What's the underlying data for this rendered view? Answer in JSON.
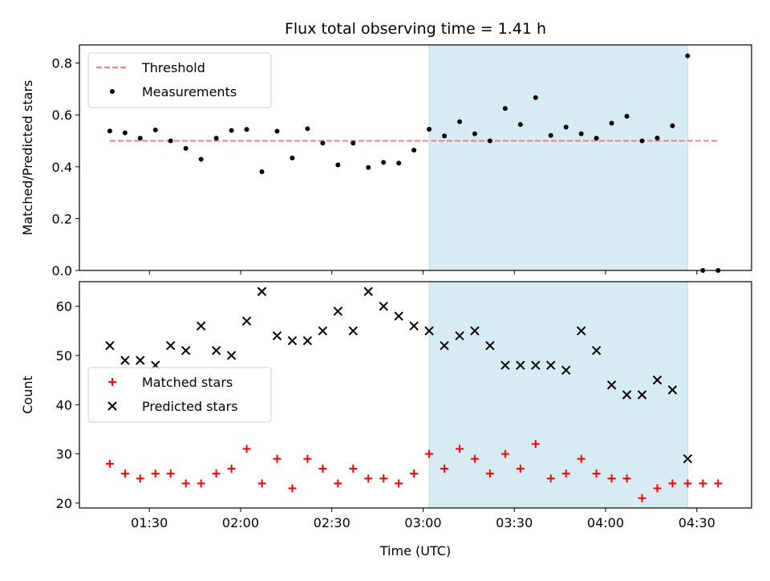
{
  "chart_data": [
    {
      "type": "scatter",
      "title": "Flux total observing time = 1.41 h",
      "xlabel": "",
      "ylabel": "Matched/Predicted stars",
      "xlim": [
        "01:07",
        "04:48"
      ],
      "ylim": [
        0,
        0.87
      ],
      "yticks": [
        0,
        0.2,
        0.4,
        0.6,
        0.8
      ],
      "ytick_labels": [
        "0.0",
        "0.2",
        "0.4",
        "0.6",
        "0.8"
      ],
      "highlight_span": [
        "03:02",
        "04:27"
      ],
      "highlight_color": "#add8e6",
      "legend_position": "top-left",
      "threshold": {
        "name": "Threshold",
        "color": "#f08080",
        "style": "dashed",
        "y": 0.5,
        "x_start": "01:17",
        "x_end": "04:37"
      },
      "series": [
        {
          "name": "Measurements",
          "color": "#000000",
          "marker": "dot",
          "x": [
            "01:17",
            "01:22",
            "01:27",
            "01:32",
            "01:37",
            "01:42",
            "01:47",
            "01:52",
            "01:57",
            "02:02",
            "02:07",
            "02:12",
            "02:17",
            "02:22",
            "02:27",
            "02:32",
            "02:37",
            "02:42",
            "02:47",
            "02:52",
            "02:57",
            "03:02",
            "03:07",
            "03:12",
            "03:17",
            "03:22",
            "03:27",
            "03:32",
            "03:37",
            "03:42",
            "03:47",
            "03:52",
            "03:57",
            "04:02",
            "04:07",
            "04:12",
            "04:17",
            "04:22",
            "04:27",
            "04:32",
            "04:37"
          ],
          "y": [
            0.538,
            0.531,
            0.51,
            0.542,
            0.5,
            0.471,
            0.429,
            0.51,
            0.54,
            0.544,
            0.381,
            0.537,
            0.434,
            0.547,
            0.491,
            0.407,
            0.491,
            0.397,
            0.417,
            0.414,
            0.464,
            0.545,
            0.519,
            0.574,
            0.527,
            0.5,
            0.625,
            0.563,
            0.667,
            0.521,
            0.553,
            0.527,
            0.51,
            0.568,
            0.595,
            0.5,
            0.511,
            0.558,
            0.828,
            0.0,
            0.0
          ]
        }
      ]
    },
    {
      "type": "scatter",
      "title": "",
      "xlabel": "Time (UTC)",
      "ylabel": "Count",
      "xlim": [
        "01:07",
        "04:48"
      ],
      "ylim": [
        19,
        65
      ],
      "yticks": [
        20,
        30,
        40,
        50,
        60
      ],
      "ytick_labels": [
        "20",
        "30",
        "40",
        "50",
        "60"
      ],
      "xticks": [
        "01:30",
        "02:00",
        "02:30",
        "03:00",
        "03:30",
        "04:00",
        "04:30"
      ],
      "highlight_span": [
        "03:02",
        "04:27"
      ],
      "highlight_color": "#add8e6",
      "legend_position": "center-left",
      "series": [
        {
          "name": "Matched stars",
          "color": "#ff0000",
          "marker": "plus",
          "x": [
            "01:17",
            "01:22",
            "01:27",
            "01:32",
            "01:37",
            "01:42",
            "01:47",
            "01:52",
            "01:57",
            "02:02",
            "02:07",
            "02:12",
            "02:17",
            "02:22",
            "02:27",
            "02:32",
            "02:37",
            "02:42",
            "02:47",
            "02:52",
            "02:57",
            "03:02",
            "03:07",
            "03:12",
            "03:17",
            "03:22",
            "03:27",
            "03:32",
            "03:37",
            "03:42",
            "03:47",
            "03:52",
            "03:57",
            "04:02",
            "04:07",
            "04:12",
            "04:17",
            "04:22",
            "04:27",
            "04:32",
            "04:37"
          ],
          "y": [
            28,
            26,
            25,
            26,
            26,
            24,
            24,
            26,
            27,
            31,
            24,
            29,
            23,
            29,
            27,
            24,
            27,
            25,
            25,
            24,
            26,
            30,
            27,
            31,
            29,
            26,
            30,
            27,
            32,
            25,
            26,
            29,
            26,
            25,
            25,
            21,
            23,
            24,
            24,
            24,
            24
          ]
        },
        {
          "name": "Predicted stars",
          "color": "#000000",
          "marker": "x",
          "x": [
            "01:17",
            "01:22",
            "01:27",
            "01:32",
            "01:37",
            "01:42",
            "01:47",
            "01:52",
            "01:57",
            "02:02",
            "02:07",
            "02:12",
            "02:17",
            "02:22",
            "02:27",
            "02:32",
            "02:37",
            "02:42",
            "02:47",
            "02:52",
            "02:57",
            "03:02",
            "03:07",
            "03:12",
            "03:17",
            "03:22",
            "03:27",
            "03:32",
            "03:37",
            "03:42",
            "03:47",
            "03:52",
            "03:57",
            "04:02",
            "04:07",
            "04:12",
            "04:17",
            "04:22",
            "04:27"
          ],
          "y": [
            52,
            49,
            49,
            48,
            52,
            51,
            56,
            51,
            50,
            57,
            63,
            54,
            53,
            53,
            55,
            59,
            55,
            63,
            60,
            58,
            56,
            55,
            52,
            54,
            55,
            52,
            48,
            48,
            48,
            48,
            47,
            55,
            51,
            44,
            42,
            42,
            45,
            43,
            29
          ]
        }
      ]
    }
  ]
}
